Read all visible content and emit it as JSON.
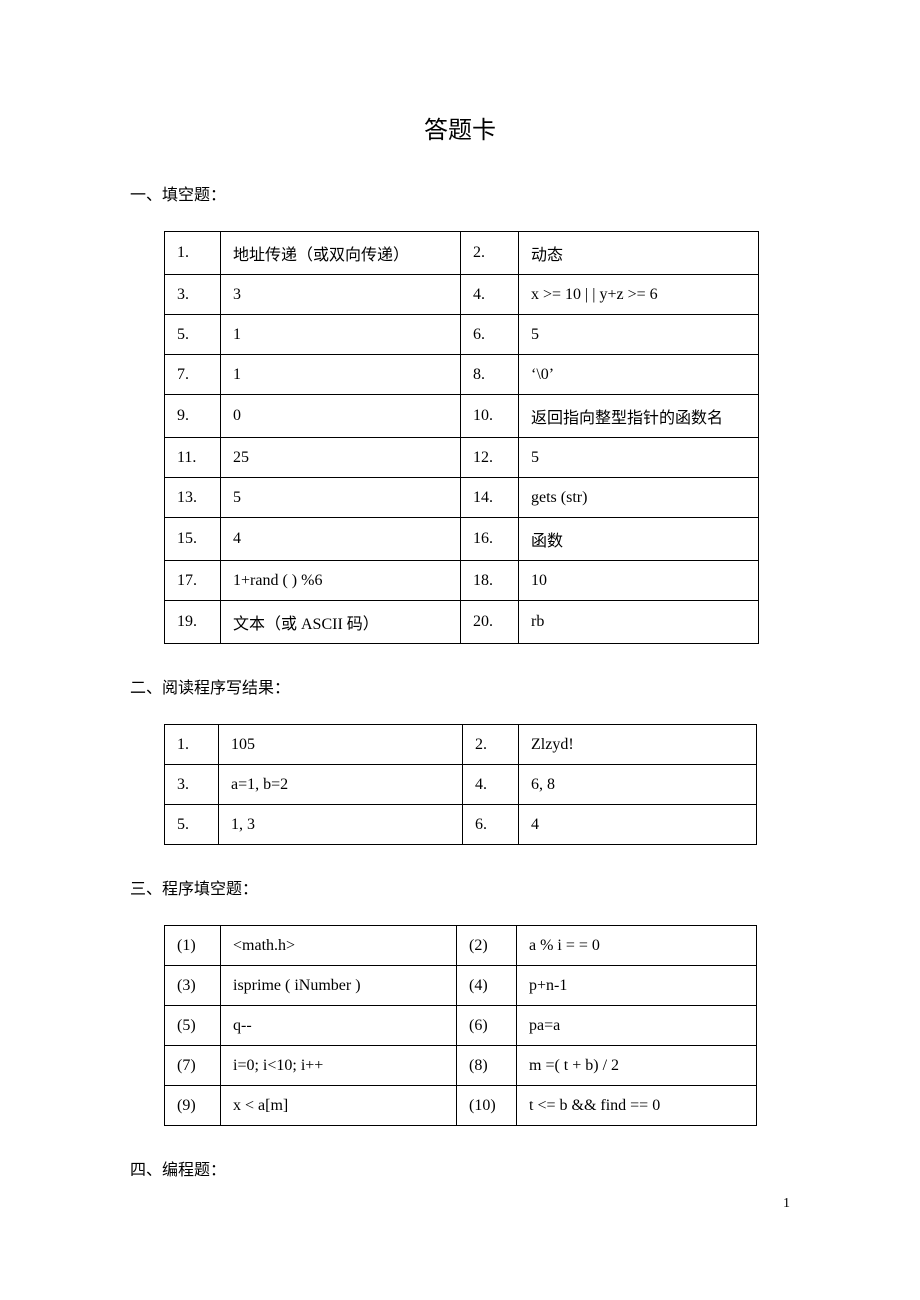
{
  "title": "答题卡",
  "sections": {
    "s1": {
      "heading": "一、填空题："
    },
    "s2": {
      "heading": "二、阅读程序写结果："
    },
    "s3": {
      "heading": "三、程序填空题："
    },
    "s4": {
      "heading": "四、编程题："
    }
  },
  "table1": {
    "rows": [
      {
        "n1": "1.",
        "a1": "地址传递（或双向传递）",
        "n2": "2.",
        "a2": "动态"
      },
      {
        "n1": "3.",
        "a1": "3",
        "n2": "4.",
        "a2": "x >= 10 | | y+z >= 6"
      },
      {
        "n1": "5.",
        "a1": "1",
        "n2": "6.",
        "a2": "5"
      },
      {
        "n1": "7.",
        "a1": "1",
        "n2": "8.",
        "a2": "‘\\0’"
      },
      {
        "n1": "9.",
        "a1": "0",
        "n2": "10.",
        "a2": "返回指向整型指针的函数名"
      },
      {
        "n1": "11.",
        "a1": "25",
        "n2": "12.",
        "a2": "5"
      },
      {
        "n1": "13.",
        "a1": "5",
        "n2": "14.",
        "a2": "gets (str)"
      },
      {
        "n1": "15.",
        "a1": "4",
        "n2": "16.",
        "a2": "函数"
      },
      {
        "n1": "17.",
        "a1": "1+rand ( ) %6",
        "n2": "18.",
        "a2": "10"
      },
      {
        "n1": "19.",
        "a1": "文本（或 ASCII 码）",
        "n2": "20.",
        "a2": "rb"
      }
    ]
  },
  "table2": {
    "rows": [
      {
        "n1": "1.",
        "a1": "105",
        "n2": "2.",
        "a2": "Zlzyd!"
      },
      {
        "n1": "3.",
        "a1": "a=1, b=2",
        "n2": "4.",
        "a2": "6, 8"
      },
      {
        "n1": "5.",
        "a1": "1, 3",
        "n2": "6.",
        "a2": "4"
      }
    ]
  },
  "table3": {
    "rows": [
      {
        "n1": "(1)",
        "a1": "<math.h>",
        "n2": "(2)",
        "a2": "a % i = = 0"
      },
      {
        "n1": "(3)",
        "a1": "isprime ( iNumber )",
        "n2": "(4)",
        "a2": "p+n-1"
      },
      {
        "n1": "(5)",
        "a1": "q--",
        "n2": "(6)",
        "a2": "pa=a"
      },
      {
        "n1": "(7)",
        "a1": "i=0; i<10; i++",
        "n2": "(8)",
        "a2": "m =( t + b) / 2"
      },
      {
        "n1": "(9)",
        "a1": "x < a[m]",
        "n2": "(10)",
        "a2": "t <= b && find == 0"
      }
    ]
  },
  "pageNumber": "1"
}
